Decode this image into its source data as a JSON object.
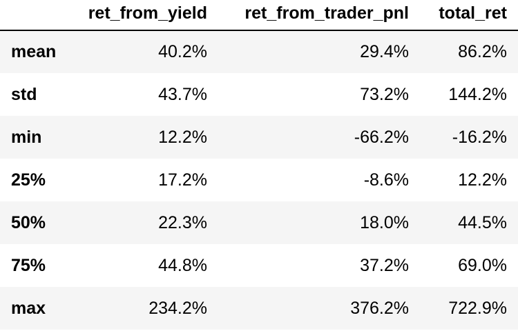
{
  "table": {
    "index_header": "",
    "columns": [
      "ret_from_yield",
      "ret_from_trader_pnl",
      "total_ret"
    ],
    "rows": [
      {
        "label": "mean",
        "values": [
          "40.2%",
          "29.4%",
          "86.2%"
        ]
      },
      {
        "label": "std",
        "values": [
          "43.7%",
          "73.2%",
          "144.2%"
        ]
      },
      {
        "label": "min",
        "values": [
          "12.2%",
          "-66.2%",
          "-16.2%"
        ]
      },
      {
        "label": "25%",
        "values": [
          "17.2%",
          "-8.6%",
          "12.2%"
        ]
      },
      {
        "label": "50%",
        "values": [
          "22.3%",
          "18.0%",
          "44.5%"
        ]
      },
      {
        "label": "75%",
        "values": [
          "44.8%",
          "37.2%",
          "69.0%"
        ]
      },
      {
        "label": "max",
        "values": [
          "234.2%",
          "376.2%",
          "722.9%"
        ]
      }
    ]
  },
  "colors": {
    "stripe": "#f5f5f5",
    "background": "#ffffff",
    "header_rule": "#000000",
    "text": "#000000"
  }
}
